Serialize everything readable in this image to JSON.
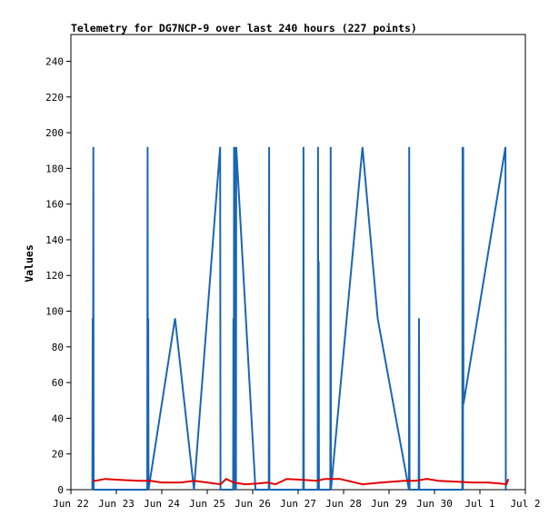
{
  "chart_data": {
    "type": "line",
    "title": "Telemetry for DG7NCP-9 over last 240 hours (227 points)",
    "ylabel": "Values",
    "xlabel": "",
    "ylim": [
      0,
      255
    ],
    "xlim": [
      "2023-06-22T00:00",
      "2023-07-02T00:00"
    ],
    "yticks": [
      0,
      20,
      40,
      60,
      80,
      100,
      120,
      140,
      160,
      180,
      200,
      220,
      240
    ],
    "xticks": [
      {
        "label": "Jun 22",
        "x": "2023-06-22T00:00"
      },
      {
        "label": "Jun 23",
        "x": "2023-06-23T00:00"
      },
      {
        "label": "Jun 24",
        "x": "2023-06-24T00:00"
      },
      {
        "label": "Jun 25",
        "x": "2023-06-25T00:00"
      },
      {
        "label": "Jun 26",
        "x": "2023-06-26T00:00"
      },
      {
        "label": "Jun 27",
        "x": "2023-06-27T00:00"
      },
      {
        "label": "Jun 28",
        "x": "2023-06-28T00:00"
      },
      {
        "label": "Jun 29",
        "x": "2023-06-29T00:00"
      },
      {
        "label": "Jun 30",
        "x": "2023-06-30T00:00"
      },
      {
        "label": "Jul 1",
        "x": "2023-07-01T00:00"
      },
      {
        "label": "Jul 2",
        "x": "2023-07-02T00:00"
      }
    ],
    "grid": false,
    "legend": "none",
    "series": [
      {
        "color": "#1a66b3",
        "points": [
          [
            "2023-06-22T11:20",
            0
          ],
          [
            "2023-06-22T11:30",
            96
          ],
          [
            "2023-06-22T11:40",
            0
          ],
          [
            "2023-06-22T11:50",
            192
          ],
          [
            "2023-06-22T12:00",
            0
          ],
          [
            "2023-06-23T16:20",
            0
          ],
          [
            "2023-06-23T16:30",
            192
          ],
          [
            "2023-06-23T16:40",
            0
          ],
          [
            "2023-06-23T16:50",
            96
          ],
          [
            "2023-06-23T17:00",
            0
          ],
          [
            "2023-06-24T07:00",
            96
          ],
          [
            "2023-06-24T17:00",
            0
          ],
          [
            "2023-06-25T06:50",
            192
          ],
          [
            "2023-06-25T07:00",
            0
          ],
          [
            "2023-06-25T13:40",
            0
          ],
          [
            "2023-06-25T13:50",
            96
          ],
          [
            "2023-06-25T14:00",
            0
          ],
          [
            "2023-06-25T14:10",
            192
          ],
          [
            "2023-06-25T14:20",
            0
          ],
          [
            "2023-06-25T14:40",
            144
          ],
          [
            "2023-06-25T14:50",
            0
          ],
          [
            "2023-06-25T15:00",
            192
          ],
          [
            "2023-06-25T15:10",
            0
          ],
          [
            "2023-06-25T15:20",
            192
          ],
          [
            "2023-06-26T01:30",
            0
          ],
          [
            "2023-06-26T08:30",
            0
          ],
          [
            "2023-06-26T08:40",
            192
          ],
          [
            "2023-06-26T08:50",
            0
          ],
          [
            "2023-06-27T02:40",
            0
          ],
          [
            "2023-06-27T02:50",
            192
          ],
          [
            "2023-06-27T03:00",
            0
          ],
          [
            "2023-06-27T10:20",
            0
          ],
          [
            "2023-06-27T10:30",
            192
          ],
          [
            "2023-06-27T10:40",
            0
          ],
          [
            "2023-06-27T10:50",
            128
          ],
          [
            "2023-06-27T11:00",
            0
          ],
          [
            "2023-06-27T17:00",
            0
          ],
          [
            "2023-06-27T17:10",
            192
          ],
          [
            "2023-06-27T17:20",
            0
          ],
          [
            "2023-06-28T10:00",
            192
          ],
          [
            "2023-06-28T18:00",
            96
          ],
          [
            "2023-06-29T10:30",
            0
          ],
          [
            "2023-06-29T10:40",
            192
          ],
          [
            "2023-06-29T10:50",
            0
          ],
          [
            "2023-06-29T15:40",
            0
          ],
          [
            "2023-06-29T15:50",
            96
          ],
          [
            "2023-06-29T16:00",
            0
          ],
          [
            "2023-06-30T14:40",
            0
          ],
          [
            "2023-06-30T14:50",
            192
          ],
          [
            "2023-06-30T15:00",
            0
          ],
          [
            "2023-06-30T15:10",
            192
          ],
          [
            "2023-06-30T15:20",
            48
          ],
          [
            "2023-07-01T13:30",
            192
          ],
          [
            "2023-07-01T13:40",
            0
          ],
          [
            "2023-07-01T13:50",
            0
          ]
        ]
      },
      {
        "color": "#e00000",
        "points": [
          [
            "2023-06-22T11:30",
            5
          ],
          [
            "2023-06-22T13:00",
            5
          ],
          [
            "2023-06-22T18:00",
            6
          ],
          [
            "2023-06-23T02:00",
            5.5
          ],
          [
            "2023-06-23T12:00",
            5
          ],
          [
            "2023-06-23T18:00",
            5
          ],
          [
            "2023-06-24T00:00",
            4
          ],
          [
            "2023-06-24T10:00",
            4
          ],
          [
            "2023-06-24T17:00",
            5
          ],
          [
            "2023-06-25T00:00",
            4
          ],
          [
            "2023-06-25T07:00",
            3
          ],
          [
            "2023-06-25T10:00",
            6
          ],
          [
            "2023-06-25T14:00",
            4
          ],
          [
            "2023-06-25T20:00",
            3
          ],
          [
            "2023-06-26T03:00",
            3.5
          ],
          [
            "2023-06-26T08:00",
            4
          ],
          [
            "2023-06-26T12:00",
            3
          ],
          [
            "2023-06-26T18:00",
            6
          ],
          [
            "2023-06-27T03:00",
            5.5
          ],
          [
            "2023-06-27T10:00",
            5
          ],
          [
            "2023-06-27T14:00",
            6
          ],
          [
            "2023-06-27T22:00",
            6
          ],
          [
            "2023-06-28T10:00",
            3
          ],
          [
            "2023-06-28T20:00",
            4
          ],
          [
            "2023-06-29T08:00",
            5
          ],
          [
            "2023-06-29T14:00",
            5
          ],
          [
            "2023-06-29T20:00",
            6
          ],
          [
            "2023-06-30T02:00",
            5
          ],
          [
            "2023-06-30T12:00",
            4.5
          ],
          [
            "2023-06-30T20:00",
            4
          ],
          [
            "2023-07-01T04:00",
            4
          ],
          [
            "2023-07-01T10:00",
            3.5
          ],
          [
            "2023-07-01T14:00",
            3
          ],
          [
            "2023-07-01T15:00",
            6
          ]
        ]
      }
    ]
  }
}
